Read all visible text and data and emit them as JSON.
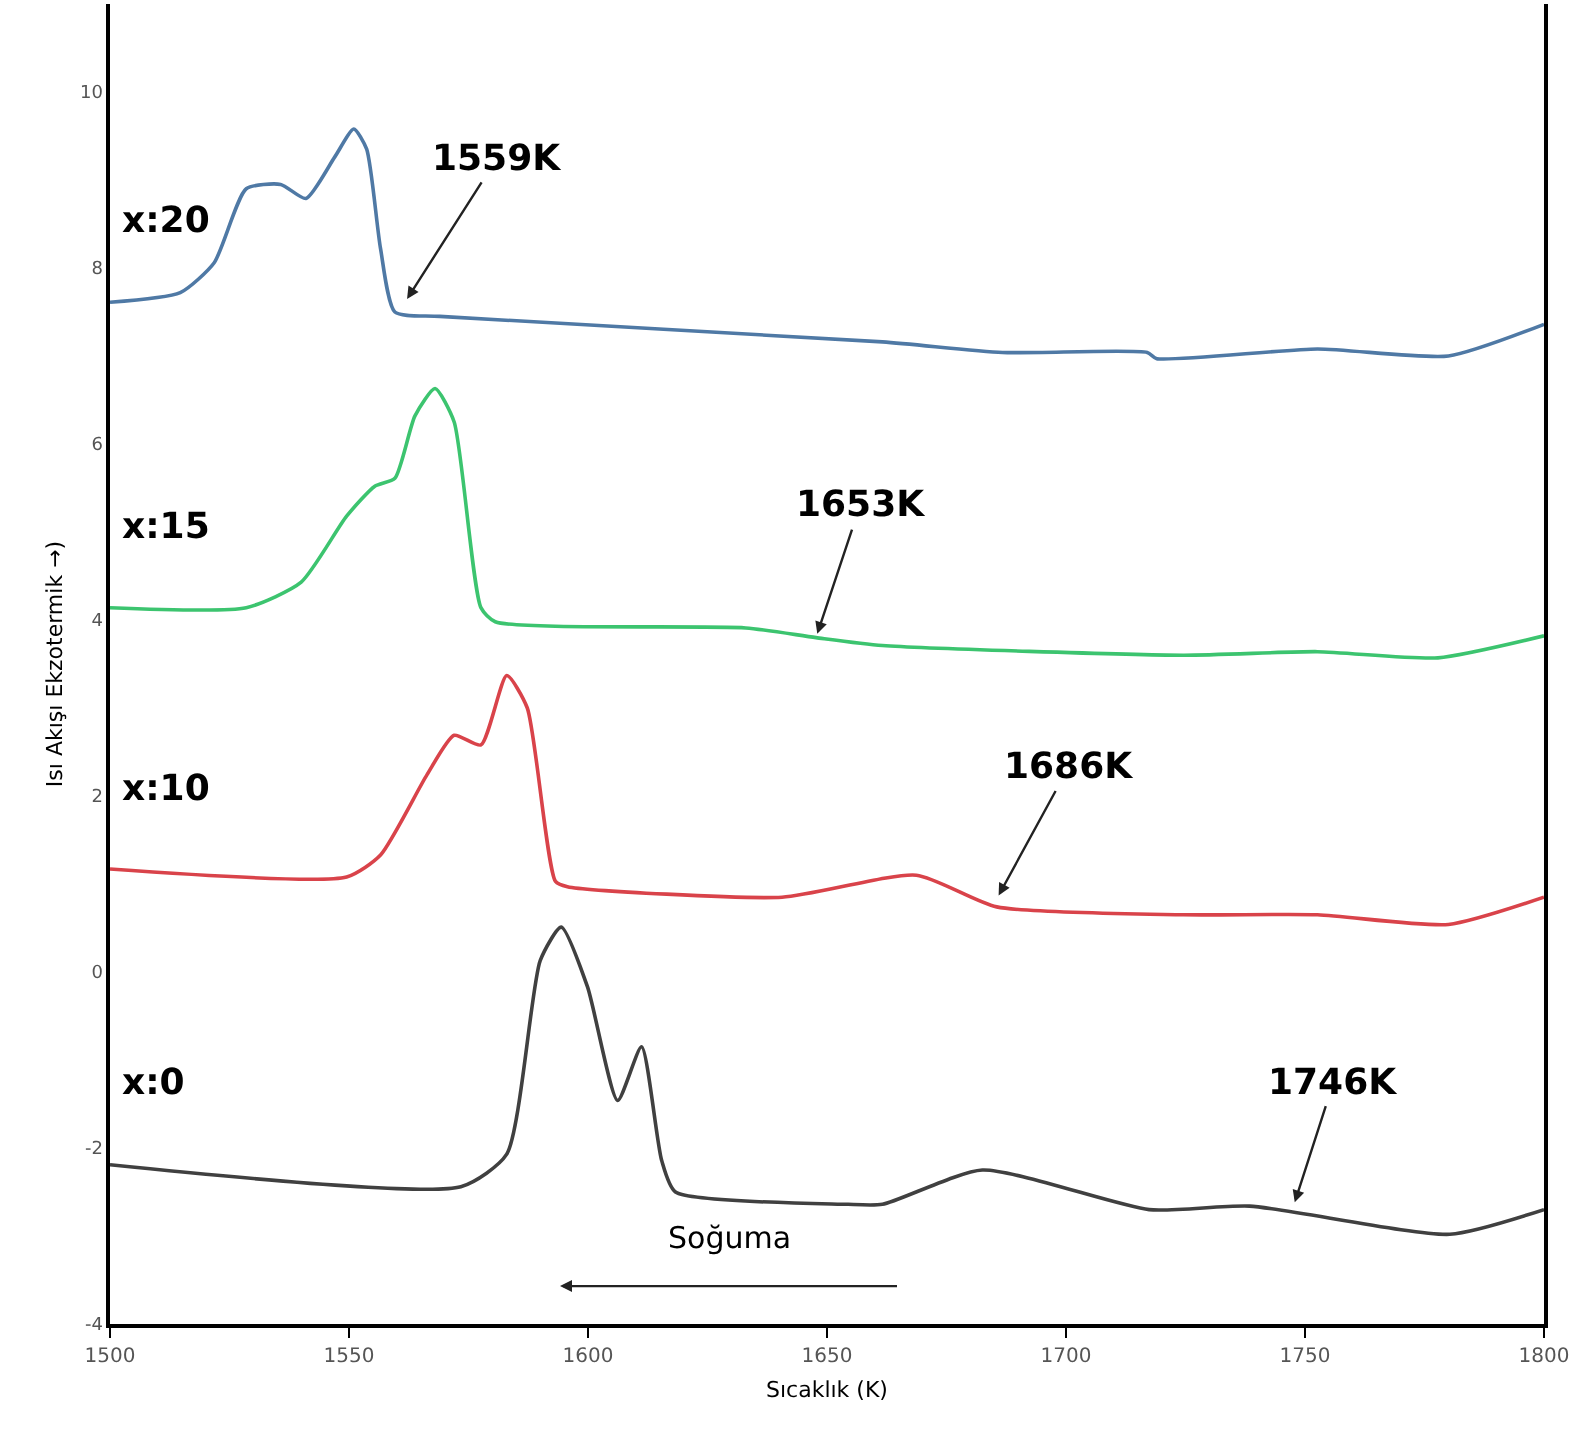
{
  "chart_data": {
    "type": "line",
    "xlabel": "Sıcaklık (K)",
    "ylabel": "Isı Akışı Ekzotermik →)",
    "xlim": [
      1500,
      1800
    ],
    "ylim": [
      -4,
      11
    ],
    "xticks": [
      1500,
      1550,
      1600,
      1650,
      1700,
      1750,
      1800
    ],
    "yticks": [
      -4,
      -2,
      0,
      2,
      4,
      6,
      8,
      10
    ],
    "line_style": "solid",
    "series": [
      {
        "name": "x:20",
        "color": "#4f79a5",
        "x": [
          1500,
          1514.7,
          1521.8,
          1528.5,
          1535.7,
          1541,
          1547,
          1551,
          1553.7,
          1556.6,
          1559.6,
          1569,
          1661.6,
          1686.7,
          1717,
          1719,
          1752.6,
          1780,
          1800
        ],
        "values": [
          7.61,
          7.72,
          8.06,
          8.9,
          8.95,
          8.79,
          9.26,
          9.58,
          9.35,
          8.22,
          7.5,
          7.45,
          7.16,
          7.04,
          7.04,
          6.97,
          7.08,
          7.0,
          7.36
        ]
      },
      {
        "name": "x:15",
        "color": "#3cc46f",
        "x": [
          1500,
          1528.5,
          1540,
          1549.5,
          1555.4,
          1559.6,
          1563.8,
          1568,
          1572,
          1577.6,
          1580.6,
          1633,
          1647.7,
          1661.6,
          1724.5,
          1752.6,
          1777.8,
          1800
        ],
        "values": [
          4.14,
          4.14,
          4.43,
          5.18,
          5.52,
          5.61,
          6.32,
          6.63,
          6.25,
          4.14,
          3.98,
          3.91,
          3.8,
          3.71,
          3.6,
          3.64,
          3.57,
          3.82
        ]
      },
      {
        "name": "x:10",
        "color": "#d9434a",
        "x": [
          1500,
          1549.5,
          1556.6,
          1566.3,
          1572,
          1577.6,
          1583,
          1587.3,
          1593.2,
          1595.7,
          1640.6,
          1668.7,
          1685.5,
          1724.5,
          1752.6,
          1780,
          1800
        ],
        "values": [
          1.17,
          1.08,
          1.33,
          2.24,
          2.69,
          2.58,
          3.37,
          3.0,
          1.03,
          0.97,
          0.85,
          1.1,
          0.74,
          0.65,
          0.65,
          0.54,
          0.85
        ]
      },
      {
        "name": "x:0",
        "color": "#404040",
        "x": [
          1500,
          1573.4,
          1583,
          1590,
          1594.4,
          1599.9,
          1606.2,
          1611.2,
          1615.4,
          1618.3,
          1654.4,
          1661.6,
          1682.5,
          1717.4,
          1738.4,
          1780.3,
          1800
        ],
        "values": [
          -2.19,
          -2.44,
          -2.07,
          0.13,
          0.51,
          -0.17,
          -1.46,
          -0.85,
          -2.14,
          -2.5,
          -2.64,
          -2.64,
          -2.25,
          -2.7,
          -2.66,
          -2.98,
          -2.7
        ]
      }
    ],
    "annotations": [
      {
        "text": "1559K",
        "x": 1561.7,
        "y": 7.61
      },
      {
        "text": "1653K",
        "x": 1647.7,
        "y": 3.8
      },
      {
        "text": "1686K",
        "x": 1685.5,
        "y": 0.83
      },
      {
        "text": "1746K",
        "x": 1747.6,
        "y": -2.66
      },
      "Soğuma"
    ]
  }
}
